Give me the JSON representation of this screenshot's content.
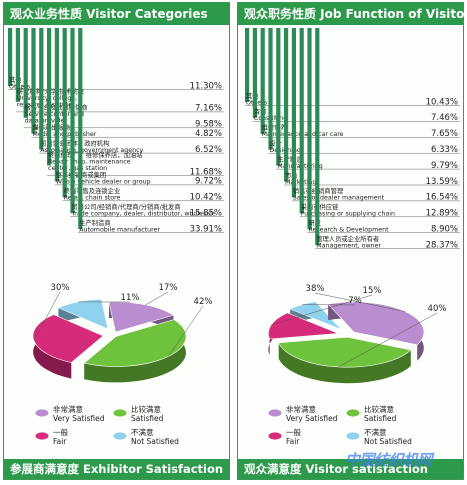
{
  "colors": {
    "header_green": "#2d9a4b",
    "bar_green": "#2e8b57",
    "pie_violet": "#b98dd0",
    "pie_green": "#6ec23c",
    "pie_magenta": "#d62a7a",
    "pie_lightblue": "#8fd2ee"
  },
  "left": {
    "title": "观众业务性质  Visitor Categories",
    "footer": "参展商满意度  Exhibitor Satisfaction"
  },
  "right": {
    "title": "观众职务性质  Job Function of Visitor",
    "footer": "观众满意度  Visitor satisfaction"
  },
  "watermark": "中国纺织机网",
  "chart_data": [
    {
      "type": "bar",
      "title": "观众业务性质 Visitor Categories",
      "categories": [
        "其他 Others",
        "研究机构/大学/技术院校 University, college, research institute",
        "服务平台及数据提供商 Service center and data provider",
        "媒体及出版商 Media and publisher",
        "贸易协会团体、政府机构 Association, government agency",
        "终端修理厂，维修保养店，加油站 Repair shop, maintenance center, gas station",
        "整车经销商或集团 Whole vehicle dealer or group",
        "终端零售及连锁企业 Retail, chain store",
        "贸易公司/经销商/代理商/分销商/批发商 Trade company, dealer, distributor, wholesale",
        "生产制造商 Automobile manufacturer"
      ],
      "labels": [
        [
          "其他",
          "Others"
        ],
        [
          "研究机构/大学/技术院校",
          "University, college,",
          "research institute"
        ],
        [
          "服务平台及数据提供商",
          "Service center and",
          "data provider"
        ],
        [
          "媒体及出版商",
          "Media and publisher"
        ],
        [
          "贸易协会团体、政府机构",
          "Association, government agency"
        ],
        [
          "终端修理厂，维修保养店，加油站",
          "Repair shop, maintenance",
          "center, gas station"
        ],
        [
          "整车经销商或集团",
          "Whole vehicle dealer or group"
        ],
        [
          "终端零售及连锁企业",
          "Retail, chain store"
        ],
        [
          "贸易公司/经销商/代理商/分销商/批发商",
          "Trade company, dealer, distributor, wholesale"
        ],
        [
          "生产制造商",
          "Automobile manufacturer"
        ]
      ],
      "values": [
        11.3,
        7.16,
        9.58,
        4.82,
        6.52,
        11.68,
        9.72,
        10.42,
        15.85,
        33.91
      ],
      "value_labels": [
        "11.30%",
        "7.16%",
        "9.58%",
        "4.82%",
        "6.52%",
        "11.68%",
        "9.72%",
        "10.42%",
        "15.85%",
        "33.91%"
      ]
    },
    {
      "type": "bar",
      "title": "观众职务性质 Job Function of Visitor",
      "categories": [
        "其他 Others",
        "咨询 Consulting",
        "维修保养 Maintenance and car care",
        "设计 Designing",
        "生产制造 Manufacturing",
        "市场 Marketing",
        "销售或经销商管理 Sales or dealer management",
        "采购或供应链 Purchasing or supplying chain",
        "研发 Research & Development",
        "管理人员或企业所有者 Management, owner"
      ],
      "labels": [
        [
          "其他",
          "Others"
        ],
        [
          "咨询",
          "Consulting"
        ],
        [
          "维修保养",
          "Maintenance and car care"
        ],
        [
          "设计",
          "Designing"
        ],
        [
          "生产制造",
          "Manufacturing"
        ],
        [
          "市场",
          "Marketing"
        ],
        [
          "销售或经销商管理",
          "Sales or dealer management"
        ],
        [
          "采购或供应链",
          "Purchasing or supplying chain"
        ],
        [
          "研发",
          "Research & Development"
        ],
        [
          "管理人员或企业所有者",
          "Management, owner"
        ]
      ],
      "values": [
        10.43,
        7.46,
        7.65,
        6.33,
        9.79,
        13.59,
        16.54,
        12.89,
        8.9,
        28.37
      ],
      "value_labels": [
        "10.43%",
        "7.46%",
        "7.65%",
        "6.33%",
        "9.79%",
        "13.59%",
        "16.54%",
        "12.89%",
        "8.90%",
        "28.37%"
      ]
    },
    {
      "type": "pie",
      "title": "参展商满意度 Exhibitor Satisfaction",
      "categories": [
        "非常满意 Very Satisfied",
        "比较满意 Satisfied",
        "一般 Fair",
        "不满意 Not Satisfied"
      ],
      "values": [
        17,
        42,
        30,
        11
      ],
      "value_labels": [
        "17%",
        "42%",
        "30%",
        "11%"
      ],
      "legend": [
        {
          "cn": "非常满意",
          "en": "Very Satisfied",
          "color": "#b98dd0"
        },
        {
          "cn": "比较满意",
          "en": "Satisfied",
          "color": "#6ec23c"
        },
        {
          "cn": "一般",
          "en": "Fair",
          "color": "#d62a7a"
        },
        {
          "cn": "不满意",
          "en": "Not Satisfied",
          "color": "#8fd2ee"
        }
      ],
      "legend_position": "bottom"
    },
    {
      "type": "pie",
      "title": "观众满意度 Visitor satisfaction",
      "categories": [
        "非常满意 Very Satisfied",
        "比较满意 Satisfied",
        "一般 Fair",
        "不满意 Not Satisfied"
      ],
      "values": [
        38,
        40,
        15,
        7
      ],
      "value_labels": [
        "38%",
        "40%",
        "15%",
        "7%"
      ],
      "legend": [
        {
          "cn": "非常满意",
          "en": "Very Satisfied",
          "color": "#b98dd0"
        },
        {
          "cn": "比较满意",
          "en": "Satisfied",
          "color": "#6ec23c"
        },
        {
          "cn": "一般",
          "en": "Fair",
          "color": "#d62a7a"
        },
        {
          "cn": "不满意",
          "en": "Not Satisfied",
          "color": "#8fd2ee"
        }
      ],
      "legend_position": "bottom"
    }
  ]
}
